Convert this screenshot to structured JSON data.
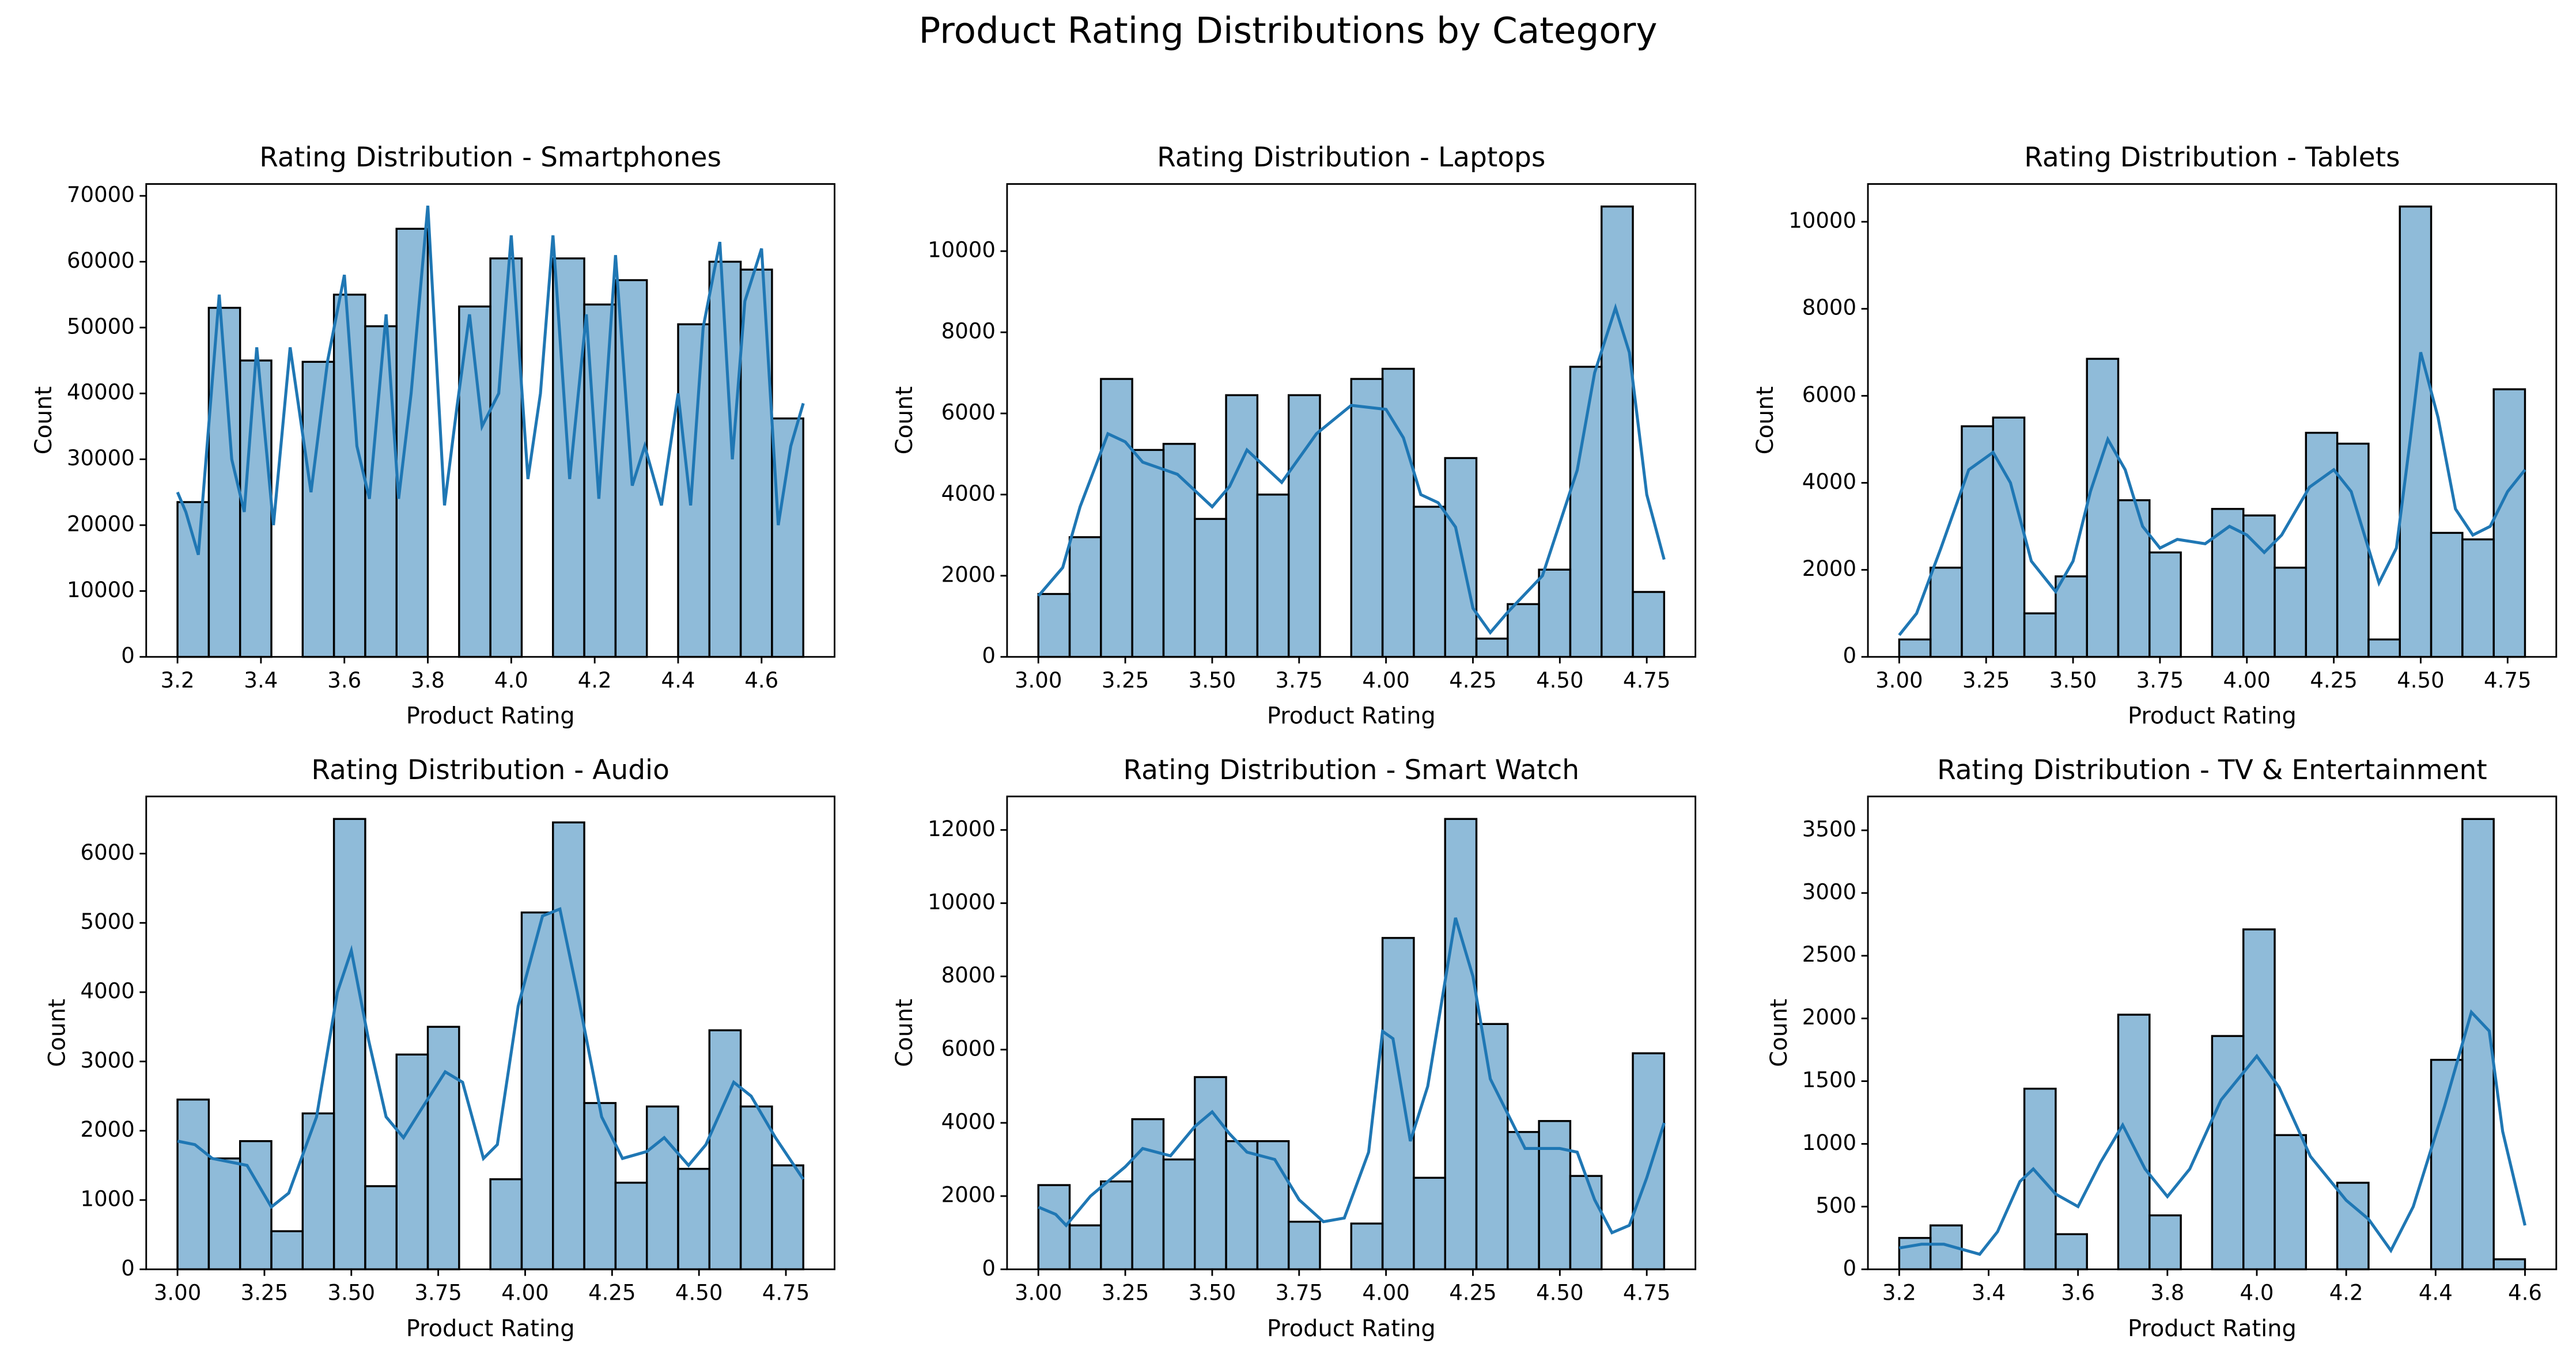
{
  "title": "Product Rating Distributions by Category",
  "chart_data": [
    {
      "type": "histogram",
      "title": "Rating Distribution - Smartphones",
      "xlabel": "Product Rating",
      "ylabel": "Count",
      "color": "#1f77b4",
      "bins": [
        3.2,
        3.275,
        3.35,
        3.425,
        3.5,
        3.575,
        3.65,
        3.725,
        3.8,
        3.875,
        3.95,
        4.025,
        4.1,
        4.175,
        4.25,
        4.325,
        4.4,
        4.475,
        4.55,
        4.625,
        4.7
      ],
      "counts": [
        23500,
        53000,
        45000,
        0,
        44800,
        55000,
        50200,
        65000,
        0,
        53200,
        60500,
        0,
        60500,
        53500,
        57200,
        0,
        50500,
        60000,
        58800,
        36200
      ],
      "kde": {
        "x": [
          3.2,
          3.22,
          3.25,
          3.3,
          3.33,
          3.36,
          3.39,
          3.43,
          3.47,
          3.52,
          3.56,
          3.6,
          3.63,
          3.66,
          3.7,
          3.73,
          3.76,
          3.8,
          3.84,
          3.87,
          3.9,
          3.93,
          3.97,
          4.0,
          4.04,
          4.07,
          4.1,
          4.14,
          4.18,
          4.21,
          4.25,
          4.29,
          4.32,
          4.36,
          4.4,
          4.43,
          4.46,
          4.5,
          4.53,
          4.56,
          4.6,
          4.64,
          4.67,
          4.7
        ],
        "y": [
          25000,
          22000,
          15500,
          55000,
          30000,
          22000,
          47000,
          20000,
          47000,
          25000,
          45000,
          58000,
          32000,
          24000,
          52000,
          24000,
          40000,
          68500,
          23000,
          38000,
          52000,
          35000,
          40000,
          64000,
          27000,
          40000,
          64000,
          27000,
          52000,
          24000,
          61000,
          26000,
          32000,
          23000,
          40000,
          23000,
          50000,
          63000,
          30000,
          54000,
          62000,
          20000,
          32000,
          38500
        ]
      },
      "xlim": [
        3.125,
        4.775
      ],
      "ylim": [
        0,
        71800
      ],
      "xticks": [
        3.2,
        3.4,
        3.6,
        3.8,
        {
          "value": 4,
          "label": "4.0"
        },
        4.2,
        4.4,
        4.6
      ],
      "yticks": [
        0,
        10000,
        20000,
        30000,
        40000,
        50000,
        60000,
        70000
      ]
    },
    {
      "type": "histogram",
      "title": "Rating Distribution - Laptops",
      "xlabel": "Product Rating",
      "ylabel": "Count",
      "color": "#1f77b4",
      "bins": [
        3.0,
        3.09,
        3.18,
        3.27,
        3.36,
        3.45,
        3.54,
        3.63,
        3.72,
        3.81,
        3.9,
        3.99,
        4.08,
        4.17,
        4.26,
        4.35,
        4.44,
        4.53,
        4.62,
        4.71,
        4.8
      ],
      "counts": [
        1550,
        2950,
        6850,
        5100,
        5250,
        3400,
        6450,
        4000,
        6450,
        0,
        6850,
        7100,
        3700,
        4900,
        450,
        1300,
        2150,
        7150,
        11100,
        1600
      ],
      "kde": {
        "x": [
          3.0,
          3.07,
          3.12,
          3.2,
          3.25,
          3.3,
          3.4,
          3.5,
          3.55,
          3.6,
          3.65,
          3.7,
          3.8,
          3.9,
          4.0,
          4.05,
          4.1,
          4.15,
          4.2,
          4.25,
          4.3,
          4.35,
          4.45,
          4.55,
          4.6,
          4.66,
          4.7,
          4.75,
          4.8
        ],
        "y": [
          1500,
          2200,
          3700,
          5500,
          5300,
          4800,
          4500,
          3700,
          4200,
          5100,
          4700,
          4300,
          5500,
          6200,
          6100,
          5400,
          4000,
          3800,
          3200,
          1200,
          600,
          1100,
          2000,
          4600,
          7000,
          8600,
          7500,
          4000,
          2400
        ]
      },
      "xlim": [
        2.91,
        4.89
      ],
      "ylim": [
        0,
        11655
      ],
      "xticks": [
        {
          "value": 3,
          "label": "3.00"
        },
        {
          "value": 3.25,
          "label": "3.25"
        },
        {
          "value": 3.5,
          "label": "3.50"
        },
        {
          "value": 3.75,
          "label": "3.75"
        },
        {
          "value": 4,
          "label": "4.00"
        },
        {
          "value": 4.25,
          "label": "4.25"
        },
        {
          "value": 4.5,
          "label": "4.50"
        },
        {
          "value": 4.75,
          "label": "4.75"
        }
      ],
      "yticks": [
        0,
        2000,
        4000,
        6000,
        8000,
        10000
      ]
    },
    {
      "type": "histogram",
      "title": "Rating Distribution - Tablets",
      "xlabel": "Product Rating",
      "ylabel": "Count",
      "color": "#1f77b4",
      "bins": [
        3.0,
        3.09,
        3.18,
        3.27,
        3.36,
        3.45,
        3.54,
        3.63,
        3.72,
        3.81,
        3.9,
        3.99,
        4.08,
        4.17,
        4.26,
        4.35,
        4.44,
        4.53,
        4.62,
        4.71,
        4.8
      ],
      "counts": [
        400,
        2050,
        5300,
        5500,
        1000,
        1850,
        6850,
        3600,
        2400,
        0,
        3400,
        3250,
        2050,
        5150,
        4900,
        400,
        10350,
        2850,
        2700,
        6150
      ],
      "kde": {
        "x": [
          3.0,
          3.05,
          3.12,
          3.2,
          3.27,
          3.32,
          3.38,
          3.45,
          3.5,
          3.55,
          3.6,
          3.65,
          3.7,
          3.75,
          3.8,
          3.88,
          3.95,
          4.0,
          4.05,
          4.1,
          4.18,
          4.25,
          4.3,
          4.38,
          4.43,
          4.47,
          4.5,
          4.55,
          4.6,
          4.65,
          4.7,
          4.75,
          4.8
        ],
        "y": [
          500,
          1000,
          2500,
          4300,
          4700,
          4000,
          2200,
          1500,
          2200,
          3800,
          5000,
          4300,
          3000,
          2500,
          2700,
          2600,
          3000,
          2800,
          2400,
          2800,
          3900,
          4300,
          3800,
          1700,
          2500,
          5000,
          7000,
          5500,
          3400,
          2800,
          3000,
          3800,
          4300
        ]
      },
      "xlim": [
        2.91,
        4.89
      ],
      "ylim": [
        0,
        10868
      ],
      "xticks": [
        {
          "value": 3,
          "label": "3.00"
        },
        {
          "value": 3.25,
          "label": "3.25"
        },
        {
          "value": 3.5,
          "label": "3.50"
        },
        {
          "value": 3.75,
          "label": "3.75"
        },
        {
          "value": 4,
          "label": "4.00"
        },
        {
          "value": 4.25,
          "label": "4.25"
        },
        {
          "value": 4.5,
          "label": "4.50"
        },
        {
          "value": 4.75,
          "label": "4.75"
        }
      ],
      "yticks": [
        0,
        2000,
        4000,
        6000,
        8000,
        10000
      ]
    },
    {
      "type": "histogram",
      "title": "Rating Distribution - Audio",
      "xlabel": "Product Rating",
      "ylabel": "Count",
      "color": "#1f77b4",
      "bins": [
        3.0,
        3.09,
        3.18,
        3.27,
        3.36,
        3.45,
        3.54,
        3.63,
        3.72,
        3.81,
        3.9,
        3.99,
        4.08,
        4.17,
        4.26,
        4.35,
        4.44,
        4.53,
        4.62,
        4.71,
        4.8
      ],
      "counts": [
        2450,
        1600,
        1850,
        550,
        2250,
        6500,
        1200,
        3100,
        3500,
        0,
        1300,
        5150,
        6450,
        2400,
        1250,
        2350,
        1450,
        3450,
        2350,
        1500
      ],
      "kde": {
        "x": [
          3.0,
          3.05,
          3.1,
          3.2,
          3.27,
          3.32,
          3.4,
          3.46,
          3.5,
          3.55,
          3.6,
          3.65,
          3.7,
          3.77,
          3.82,
          3.88,
          3.92,
          3.98,
          4.05,
          4.1,
          4.15,
          4.22,
          4.28,
          4.35,
          4.4,
          4.47,
          4.52,
          4.6,
          4.65,
          4.72,
          4.8
        ],
        "y": [
          1850,
          1800,
          1600,
          1500,
          900,
          1100,
          2200,
          4000,
          4600,
          3300,
          2200,
          1900,
          2300,
          2850,
          2700,
          1600,
          1800,
          3800,
          5100,
          5200,
          4000,
          2200,
          1600,
          1700,
          1900,
          1500,
          1800,
          2700,
          2500,
          1900,
          1300
        ]
      },
      "xlim": [
        2.91,
        4.89
      ],
      "ylim": [
        0,
        6825
      ],
      "xticks": [
        {
          "value": 3,
          "label": "3.00"
        },
        {
          "value": 3.25,
          "label": "3.25"
        },
        {
          "value": 3.5,
          "label": "3.50"
        },
        {
          "value": 3.75,
          "label": "3.75"
        },
        {
          "value": 4,
          "label": "4.00"
        },
        {
          "value": 4.25,
          "label": "4.25"
        },
        {
          "value": 4.5,
          "label": "4.50"
        },
        {
          "value": 4.75,
          "label": "4.75"
        }
      ],
      "yticks": [
        0,
        1000,
        2000,
        3000,
        4000,
        5000,
        6000
      ]
    },
    {
      "type": "histogram",
      "title": "Rating Distribution - Smart Watch",
      "xlabel": "Product Rating",
      "ylabel": "Count",
      "color": "#1f77b4",
      "bins": [
        3.0,
        3.09,
        3.18,
        3.27,
        3.36,
        3.45,
        3.54,
        3.63,
        3.72,
        3.81,
        3.9,
        3.99,
        4.08,
        4.17,
        4.26,
        4.35,
        4.44,
        4.53,
        4.62,
        4.71,
        4.8
      ],
      "counts": [
        2300,
        1200,
        2400,
        4100,
        3000,
        5250,
        3500,
        3500,
        1300,
        0,
        1250,
        9050,
        2500,
        12300,
        6700,
        3750,
        4050,
        2550,
        0,
        5900
      ],
      "kde": {
        "x": [
          3.0,
          3.05,
          3.08,
          3.15,
          3.25,
          3.3,
          3.38,
          3.45,
          3.5,
          3.55,
          3.6,
          3.68,
          3.75,
          3.82,
          3.88,
          3.95,
          3.99,
          4.02,
          4.07,
          4.12,
          4.2,
          4.25,
          4.3,
          4.4,
          4.5,
          4.55,
          4.6,
          4.65,
          4.7,
          4.75,
          4.8
        ],
        "y": [
          1700,
          1500,
          1200,
          2000,
          2800,
          3300,
          3100,
          3900,
          4300,
          3700,
          3200,
          3000,
          1900,
          1300,
          1400,
          3200,
          6500,
          6300,
          3500,
          5000,
          9600,
          8000,
          5200,
          3300,
          3300,
          3200,
          1900,
          1000,
          1200,
          2500,
          4000
        ]
      },
      "xlim": [
        2.91,
        4.89
      ],
      "ylim": [
        0,
        12915
      ],
      "xticks": [
        {
          "value": 3,
          "label": "3.00"
        },
        {
          "value": 3.25,
          "label": "3.25"
        },
        {
          "value": 3.5,
          "label": "3.50"
        },
        {
          "value": 3.75,
          "label": "3.75"
        },
        {
          "value": 4,
          "label": "4.00"
        },
        {
          "value": 4.25,
          "label": "4.25"
        },
        {
          "value": 4.5,
          "label": "4.50"
        },
        {
          "value": 4.75,
          "label": "4.75"
        }
      ],
      "yticks": [
        0,
        2000,
        4000,
        6000,
        8000,
        10000,
        12000
      ]
    },
    {
      "type": "histogram",
      "title": "Rating Distribution - TV & Entertainment",
      "xlabel": "Product Rating",
      "ylabel": "Count",
      "color": "#1f77b4",
      "bins": [
        3.2,
        3.27,
        3.34,
        3.41,
        3.48,
        3.55,
        3.62,
        3.69,
        3.76,
        3.83,
        3.9,
        3.97,
        4.04,
        4.11,
        4.18,
        4.25,
        4.32,
        4.39,
        4.46,
        4.53,
        4.6
      ],
      "counts": [
        250,
        350,
        0,
        0,
        1440,
        280,
        0,
        2030,
        430,
        0,
        1860,
        2710,
        1070,
        0,
        690,
        0,
        0,
        1670,
        3590,
        80
      ],
      "kde": {
        "x": [
          3.2,
          3.25,
          3.3,
          3.35,
          3.38,
          3.42,
          3.47,
          3.5,
          3.55,
          3.6,
          3.65,
          3.7,
          3.75,
          3.8,
          3.85,
          3.92,
          4.0,
          4.05,
          4.12,
          4.2,
          4.25,
          4.3,
          4.35,
          4.42,
          4.48,
          4.52,
          4.55,
          4.6
        ],
        "y": [
          170,
          200,
          200,
          150,
          120,
          300,
          700,
          800,
          600,
          500,
          850,
          1150,
          800,
          580,
          800,
          1350,
          1700,
          1450,
          900,
          550,
          400,
          150,
          500,
          1300,
          2050,
          1900,
          1100,
          350
        ]
      },
      "xlim": [
        3.13,
        4.67
      ],
      "ylim": [
        0,
        3770
      ],
      "xticks": [
        3.2,
        3.4,
        3.6,
        3.8,
        {
          "value": 4,
          "label": "4.0"
        },
        4.2,
        4.4,
        4.6
      ],
      "yticks": [
        0,
        500,
        1000,
        1500,
        2000,
        2500,
        3000,
        3500
      ]
    }
  ]
}
